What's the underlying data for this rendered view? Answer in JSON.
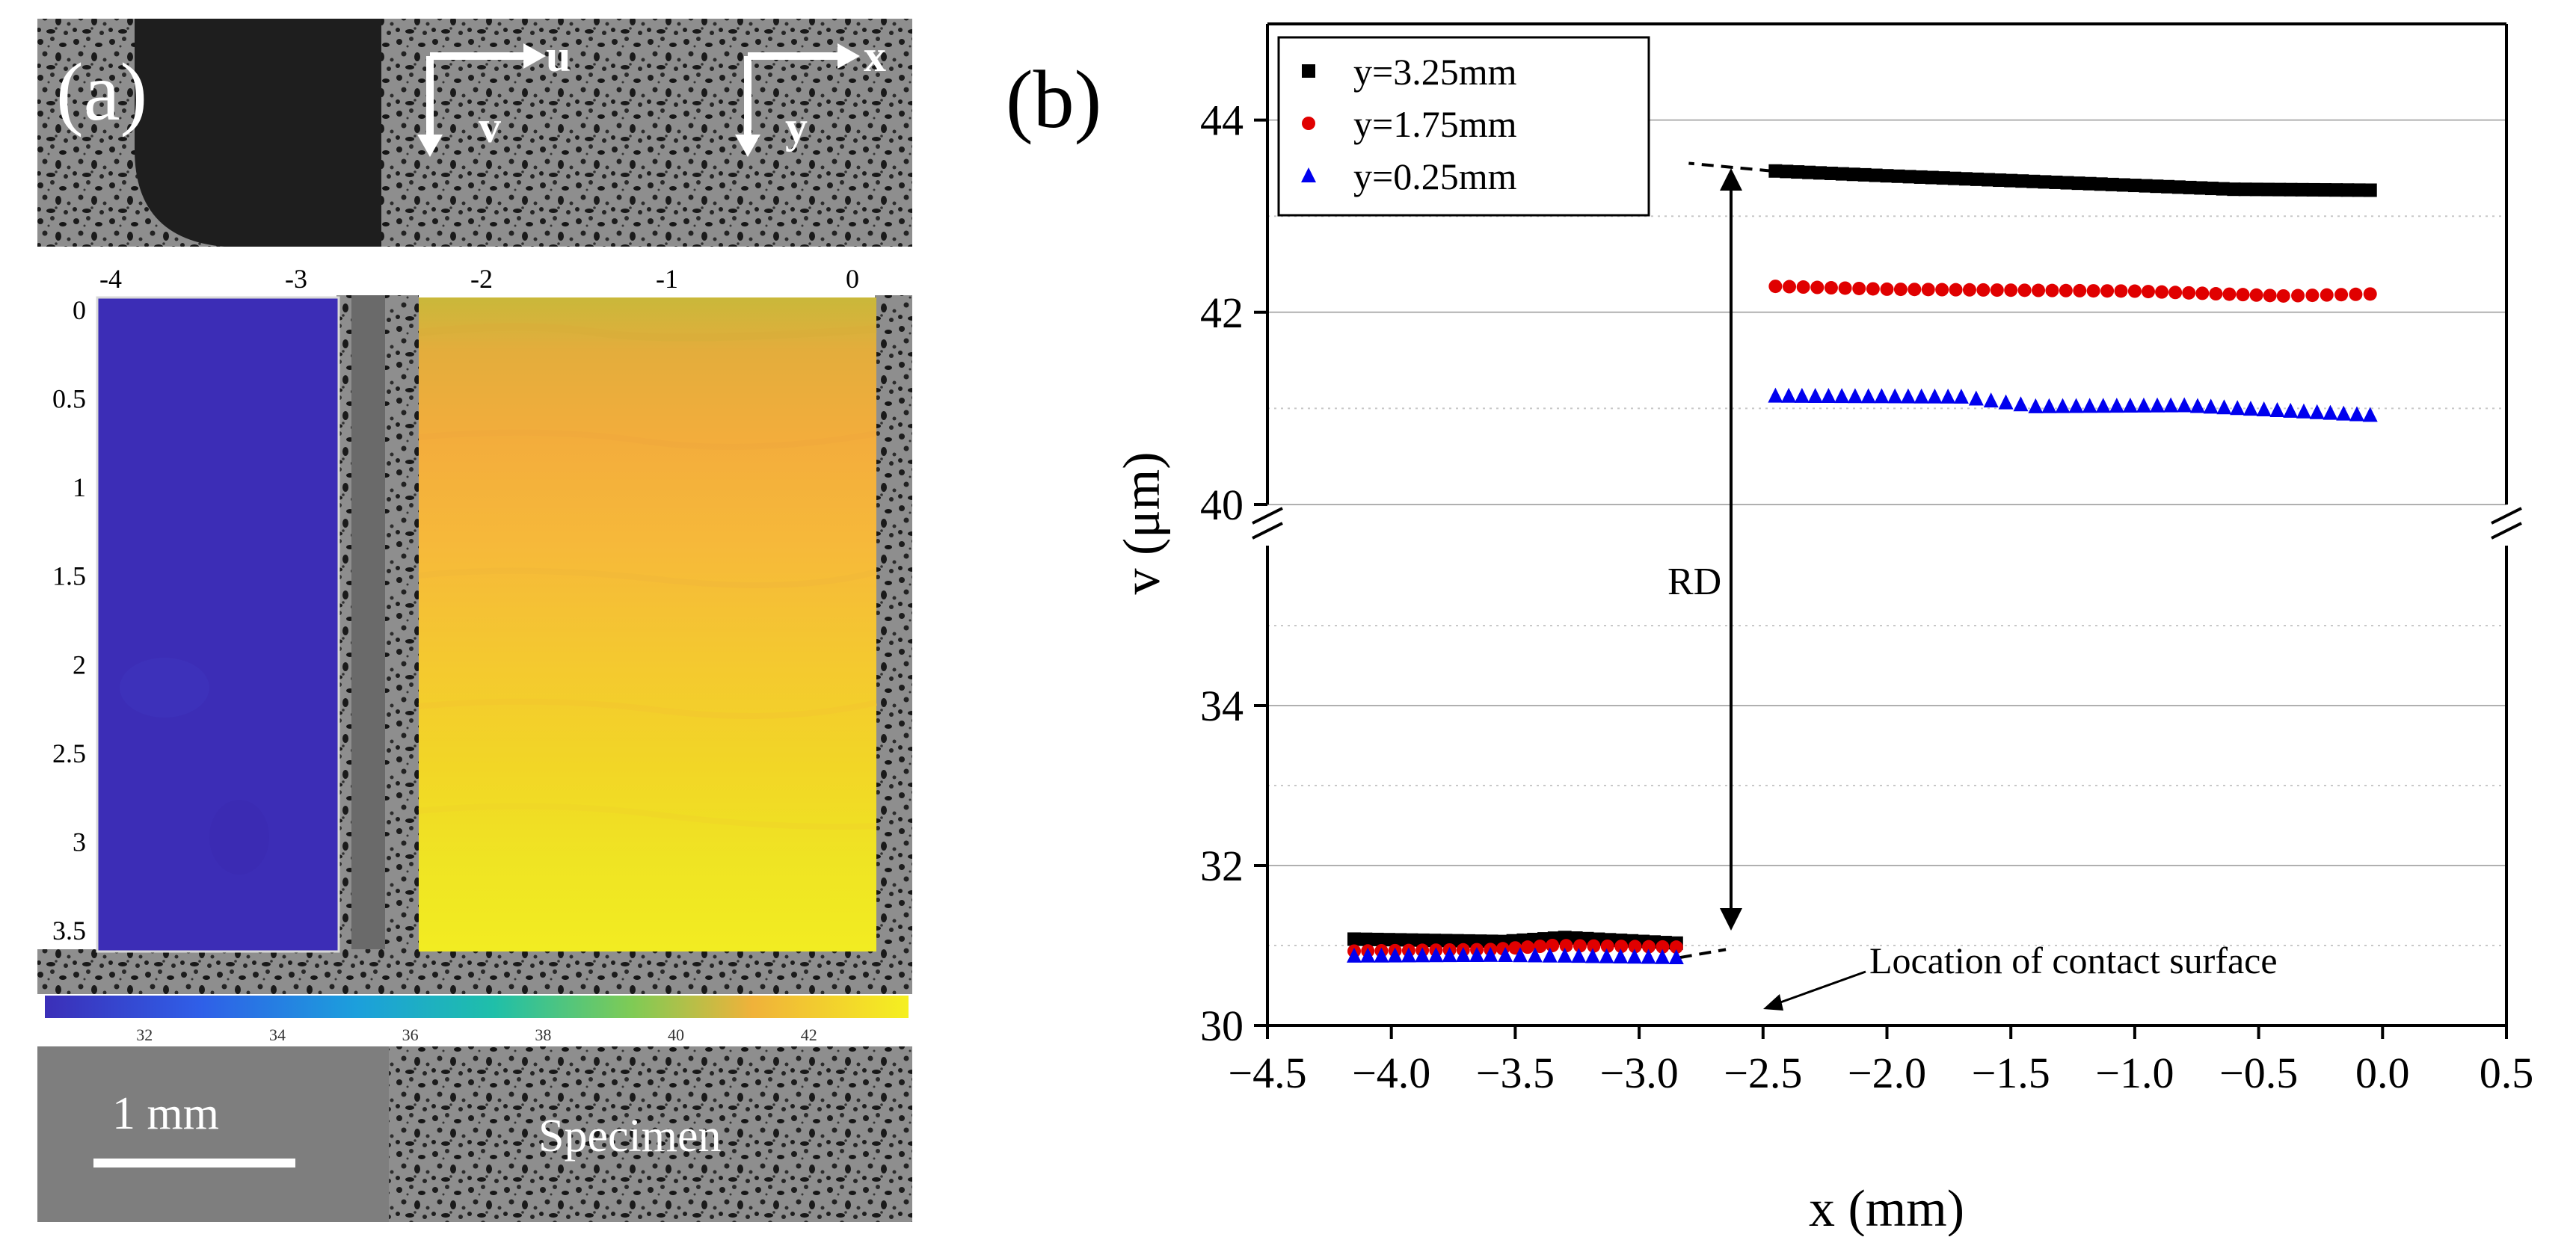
{
  "panel_a": {
    "label": "(a)",
    "axes_top": {
      "u": "u",
      "v": "v",
      "x": "x",
      "y": "y"
    },
    "x_ticks": [
      "-4",
      "-3",
      "-2",
      "-1",
      "0"
    ],
    "x_tick_values": [
      -4,
      -3,
      -2,
      -1,
      0
    ],
    "y_ticks": [
      "0",
      "0.5",
      "1",
      "1.5",
      "2",
      "2.5",
      "3",
      "3.5"
    ],
    "y_tick_values": [
      0,
      0.5,
      1,
      1.5,
      2,
      2.5,
      3,
      3.5
    ],
    "colorbar_ticks": [
      "32",
      "34",
      "36",
      "38",
      "40",
      "42"
    ],
    "colorbar_range": [
      30.5,
      43.5
    ],
    "scale_bar_label": "1 mm",
    "specimen_label": "Specimen",
    "colors": {
      "low": "#3b2fb8",
      "high": "#f5e820"
    }
  },
  "panel_b": {
    "label": "(b)",
    "rd_label": "RD",
    "contact_label": "Location of contact surface"
  },
  "chart_data": {
    "type": "scatter",
    "xlabel": "x (mm)",
    "ylabel": "v (μm)",
    "xlim": [
      -4.5,
      0.5
    ],
    "y_lower_range": [
      30,
      36
    ],
    "y_upper_range": [
      40,
      45
    ],
    "axis_break": "between 36 and 40",
    "x_ticks": [
      -4.5,
      -4.0,
      -3.5,
      -3.0,
      -2.5,
      -2.0,
      -1.5,
      -1.0,
      -0.5,
      0.0,
      0.5
    ],
    "x_tick_labels": [
      "−4.5",
      "−4.0",
      "−3.5",
      "−3.0",
      "−2.5",
      "−2.0",
      "−1.5",
      "−1.0",
      "−0.5",
      "0.0",
      "0.5"
    ],
    "y_ticks": [
      30,
      32,
      34,
      40,
      42,
      44
    ],
    "y_tick_labels": [
      "30",
      "32",
      "34",
      "40",
      "42",
      "44"
    ],
    "legend_position": "top-left",
    "series": [
      {
        "name": "y=3.25mm",
        "marker": "square",
        "color": "#000000",
        "left_segment": {
          "x": [
            -4.15,
            -3.55,
            -3.3,
            -2.85
          ],
          "y": [
            31.08,
            31.05,
            31.1,
            31.03
          ]
        },
        "right_segment": {
          "x": [
            -2.45,
            -2.0,
            -1.0,
            -0.6,
            -0.05
          ],
          "y": [
            43.47,
            43.42,
            43.32,
            43.28,
            43.27
          ]
        }
      },
      {
        "name": "y=1.75mm",
        "marker": "circle",
        "color": "#e00000",
        "left_segment": {
          "x": [
            -4.15,
            -3.6,
            -3.35,
            -2.85
          ],
          "y": [
            30.93,
            30.95,
            31.0,
            30.98
          ]
        },
        "right_segment": {
          "x": [
            -2.45,
            -2.0,
            -1.0,
            -0.4,
            -0.05
          ],
          "y": [
            42.27,
            42.24,
            42.22,
            42.17,
            42.19
          ]
        }
      },
      {
        "name": "y=0.25mm",
        "marker": "triangle",
        "color": "#0000ee",
        "left_segment": {
          "x": [
            -4.15,
            -3.6,
            -3.3,
            -2.85
          ],
          "y": [
            30.87,
            30.88,
            30.87,
            30.85
          ]
        },
        "right_segment": {
          "x": [
            -2.45,
            -1.7,
            -1.4,
            -0.8,
            -0.05
          ],
          "y": [
            41.13,
            41.12,
            41.02,
            41.03,
            40.93
          ]
        }
      }
    ]
  }
}
